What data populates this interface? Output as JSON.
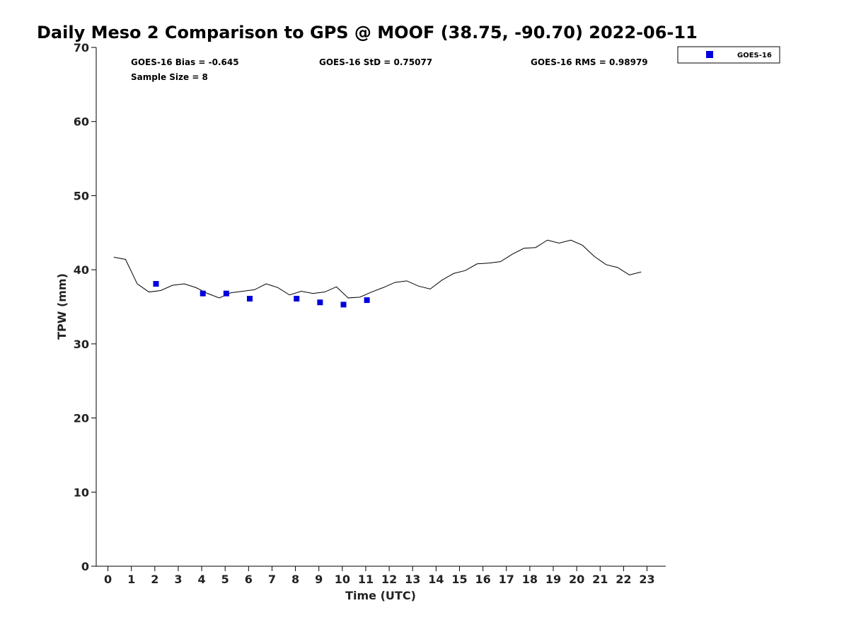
{
  "chart_data": {
    "type": "scatter",
    "title": "Daily Meso 2 Comparison to GPS @ MOOF (38.75, -90.70) 2022-06-11",
    "xlabel": "Time (UTC)",
    "ylabel": "TPW (mm)",
    "xlim": [
      -0.5,
      23.8
    ],
    "ylim": [
      0,
      70
    ],
    "x_ticks": [
      0,
      1,
      2,
      3,
      4,
      5,
      6,
      7,
      8,
      9,
      10,
      11,
      12,
      13,
      14,
      15,
      16,
      17,
      18,
      19,
      20,
      21,
      22,
      23
    ],
    "x_tick_labels": [
      "0",
      "1",
      "2",
      "3",
      "4",
      "5",
      "6",
      "7",
      "8",
      "9",
      "10",
      "11",
      "12",
      "13",
      "14",
      "15",
      "16",
      "17",
      "18",
      "19",
      "20",
      "21",
      "22",
      "23"
    ],
    "y_ticks": [
      0,
      10,
      20,
      30,
      40,
      50,
      60,
      70
    ],
    "y_tick_labels": [
      "0",
      "10",
      "20",
      "30",
      "40",
      "50",
      "60",
      "70"
    ],
    "grid": false,
    "legend_position": "top-right outside",
    "stats": {
      "bias": "GOES-16 Bias = -0.645",
      "std": "GOES-16 StD = 0.75077",
      "rms": "GOES-16 RMS = 0.98979",
      "sample_size": "Sample Size = 8"
    },
    "series": [
      {
        "kind": "line",
        "color": "#000000",
        "x": [
          0.25,
          0.75,
          1.25,
          1.75,
          2.25,
          2.75,
          3.25,
          3.75,
          4.25,
          4.75,
          5.25,
          5.75,
          6.25,
          6.75,
          7.25,
          7.75,
          8.25,
          8.75,
          9.25,
          9.75,
          10.25,
          10.75,
          11.25,
          11.75,
          12.25,
          12.75,
          13.25,
          13.75,
          14.25,
          14.75,
          15.25,
          15.75,
          16.25,
          16.75,
          17.25,
          17.75,
          18.25,
          18.75,
          19.25,
          19.75,
          20.25,
          20.75,
          21.25,
          21.75,
          22.25,
          22.75
        ],
        "values": [
          41.7,
          41.4,
          38.1,
          37.0,
          37.2,
          37.9,
          38.1,
          37.6,
          36.8,
          36.2,
          36.9,
          37.1,
          37.3,
          38.1,
          37.6,
          36.6,
          37.1,
          36.8,
          37.0,
          37.7,
          36.2,
          36.3,
          37.0,
          37.6,
          38.3,
          38.5,
          37.8,
          37.4,
          38.6,
          39.5,
          39.9,
          40.8,
          40.9,
          41.1,
          42.1,
          42.9,
          43.0,
          44.0,
          43.6,
          44.0,
          43.3,
          41.8,
          40.7,
          40.3,
          39.3,
          39.7
        ]
      },
      {
        "kind": "scatter",
        "name": "GOES-16",
        "color": "#0000dd",
        "x": [
          2.05,
          4.05,
          5.05,
          6.05,
          8.05,
          9.05,
          10.05,
          11.05
        ],
        "values": [
          38.1,
          36.8,
          36.8,
          36.1,
          36.1,
          35.6,
          35.3,
          35.9
        ]
      }
    ]
  }
}
